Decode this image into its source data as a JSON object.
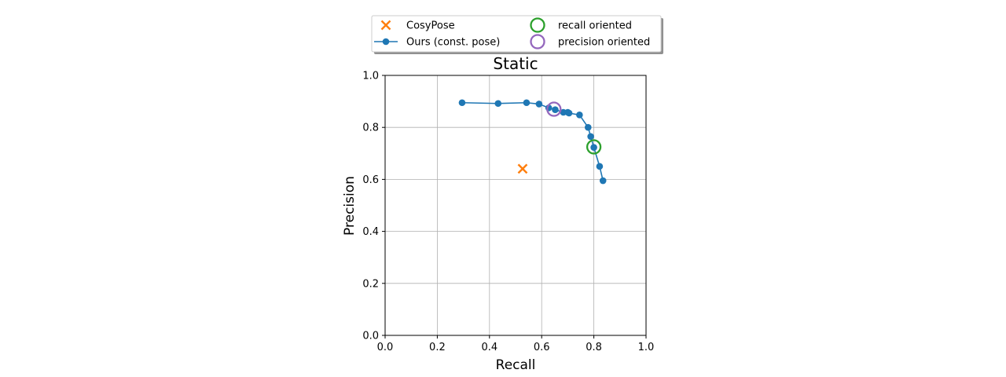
{
  "chart_data": {
    "type": "line",
    "title": "Static",
    "xlabel": "Recall",
    "ylabel": "Precision",
    "xlim": [
      0.0,
      1.0
    ],
    "ylim": [
      0.0,
      1.0
    ],
    "x_ticks": [
      "0.0",
      "0.2",
      "0.4",
      "0.6",
      "0.8",
      "1.0"
    ],
    "y_ticks": [
      "0.0",
      "0.2",
      "0.4",
      "0.6",
      "0.8",
      "1.0"
    ],
    "grid": true,
    "legend_placement": "top-center",
    "series": [
      {
        "name": "CosyPose",
        "type": "scatter",
        "marker": "x",
        "color": "#ff7f0e",
        "points": [
          [
            0.527,
            0.641
          ]
        ]
      },
      {
        "name": "Ours (const. pose)",
        "type": "line",
        "marker": "dot",
        "color": "#1f77b4",
        "points": [
          [
            0.295,
            0.895
          ],
          [
            0.433,
            0.892
          ],
          [
            0.542,
            0.895
          ],
          [
            0.59,
            0.89
          ],
          [
            0.627,
            0.875
          ],
          [
            0.652,
            0.868
          ],
          [
            0.683,
            0.858
          ],
          [
            0.7,
            0.858
          ],
          [
            0.705,
            0.855
          ],
          [
            0.745,
            0.848
          ],
          [
            0.778,
            0.8
          ],
          [
            0.788,
            0.765
          ],
          [
            0.8,
            0.723
          ],
          [
            0.822,
            0.65
          ],
          [
            0.835,
            0.595
          ]
        ]
      },
      {
        "name": "recall oriented",
        "type": "scatter",
        "marker": "circle",
        "color": "#2ca02c",
        "points": [
          [
            0.8,
            0.725
          ]
        ]
      },
      {
        "name": "precision oriented",
        "type": "scatter",
        "marker": "circle",
        "color": "#9467bd",
        "points": [
          [
            0.647,
            0.87
          ]
        ]
      }
    ],
    "legend": [
      {
        "label": "CosyPose",
        "marker": "x",
        "color": "#ff7f0e"
      },
      {
        "label": "Ours (const. pose)",
        "marker": "line-dot",
        "color": "#1f77b4"
      },
      {
        "label": "recall oriented",
        "marker": "circle",
        "color": "#2ca02c"
      },
      {
        "label": "precision oriented",
        "marker": "circle",
        "color": "#9467bd"
      }
    ]
  }
}
